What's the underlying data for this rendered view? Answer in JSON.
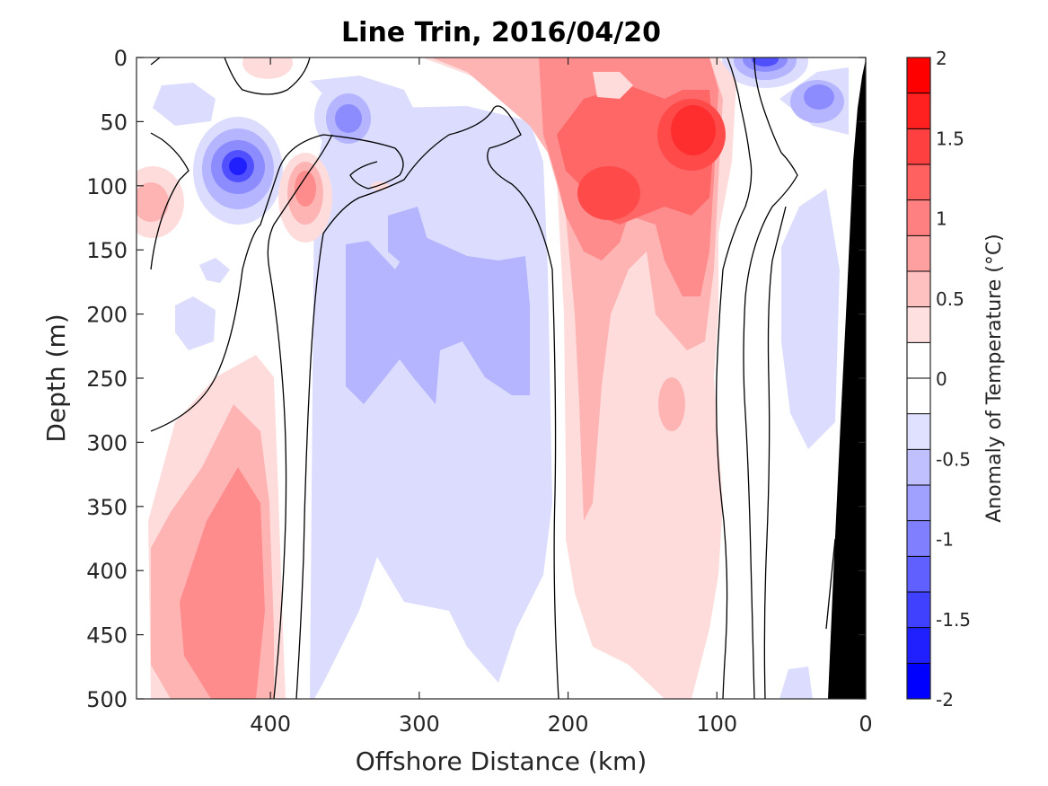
{
  "chart_data": {
    "type": "heatmap",
    "title": "Line Trin, 2016/04/20",
    "xlabel": "Offshore Distance (km)",
    "ylabel": "Depth (m)",
    "xlim": [
      490,
      0
    ],
    "ylim": [
      0,
      500
    ],
    "x_reversed": true,
    "y_reversed": true,
    "xticks": [
      400,
      300,
      200,
      100,
      0
    ],
    "yticks": [
      0,
      50,
      100,
      150,
      200,
      250,
      300,
      350,
      400,
      450,
      500
    ],
    "colorbar": {
      "label": "Anomaly of Temperature (°C)",
      "range": [
        -2,
        2
      ],
      "step": 0.25,
      "ticks": [
        2,
        1.5,
        1,
        0.5,
        0,
        -0.5,
        -1,
        -1.5,
        -2
      ],
      "tick_labels": [
        "2",
        "1.5",
        "1",
        "0.5",
        "0",
        "-0.5",
        "-1",
        "-1.5",
        "-2"
      ],
      "colors": [
        "#0000ff",
        "#2020ff",
        "#4040ff",
        "#6060ff",
        "#8080ff",
        "#a0a0ff",
        "#c0c0ff",
        "#e0e0ff",
        "#ffffff",
        "#ffffff",
        "#ffe0e0",
        "#ffc0c0",
        "#ffa0a0",
        "#ff8080",
        "#ff6060",
        "#ff4040",
        "#ff2020",
        "#ff0000"
      ]
    },
    "features": [
      {
        "name": "warm core 1",
        "x": 115,
        "depth": 60,
        "anomaly": 1.5
      },
      {
        "name": "warm core 2",
        "x": 170,
        "depth": 100,
        "anomaly": 1.25
      },
      {
        "name": "warm tongue",
        "x": 140,
        "depth_range": [
          0,
          500
        ],
        "anomaly": 0.5
      },
      {
        "name": "warm deep eddy",
        "x": 425,
        "depth": 430,
        "anomaly": 0.75
      },
      {
        "name": "warm small",
        "x": 380,
        "depth": 100,
        "anomaly": 0.75
      },
      {
        "name": "warm edge",
        "x": 480,
        "depth": 110,
        "anomaly": 0.5
      },
      {
        "name": "cold eddy 1",
        "x": 425,
        "depth": 85,
        "anomaly": -1.25
      },
      {
        "name": "cold eddy 2",
        "x": 350,
        "depth": 50,
        "anomaly": -0.75
      },
      {
        "name": "cold surface",
        "x": 70,
        "depth": 5,
        "anomaly": -1.0
      },
      {
        "name": "cold patch",
        "x": 40,
        "depth": 40,
        "anomaly": -0.75
      },
      {
        "name": "cool band",
        "x": 290,
        "depth_range": [
          50,
          500
        ],
        "anomaly": -0.5
      }
    ],
    "seafloor": {
      "color": "#000000",
      "surface_x": 0,
      "bottom_x": 25
    }
  }
}
